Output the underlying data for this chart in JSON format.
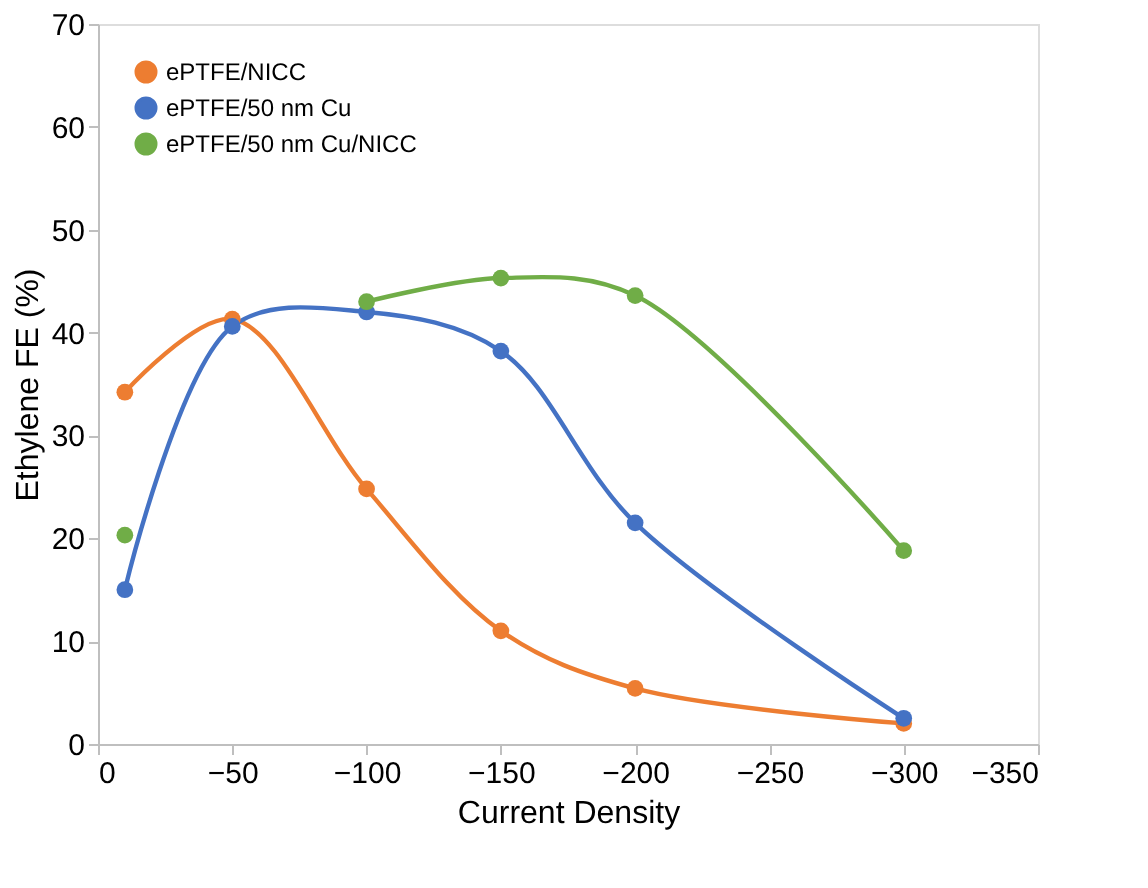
{
  "chart_data": {
    "type": "line",
    "xlabel": "Current Density",
    "ylabel": "Ethylene FE (%)",
    "x": [
      -10,
      -50,
      -100,
      -150,
      -200,
      -300
    ],
    "series": [
      {
        "name": "ePTFE/NICC",
        "color": "#ed7d31",
        "values": [
          34.2,
          41.3,
          24.8,
          11,
          5.4,
          2
        ]
      },
      {
        "name": "ePTFE/50 nm Cu",
        "color": "#4472c4",
        "values": [
          15,
          40.6,
          42,
          38.2,
          21.5,
          2.5
        ]
      },
      {
        "name": "ePTFE/50 nm Cu/NICC",
        "color": "#70ad47",
        "values": [
          20.3,
          null,
          43,
          45.3,
          43.6,
          18.8
        ]
      }
    ],
    "xlim": [
      0,
      -350
    ],
    "xticks": [
      0,
      -50,
      -100,
      -150,
      -200,
      -250,
      -300,
      -350
    ],
    "ylim": [
      0,
      70
    ],
    "yticks": [
      0,
      10,
      20,
      30,
      40,
      50,
      60,
      70
    ],
    "grid": false,
    "legend": "top left",
    "marker": "circle",
    "line_style": "solid"
  }
}
